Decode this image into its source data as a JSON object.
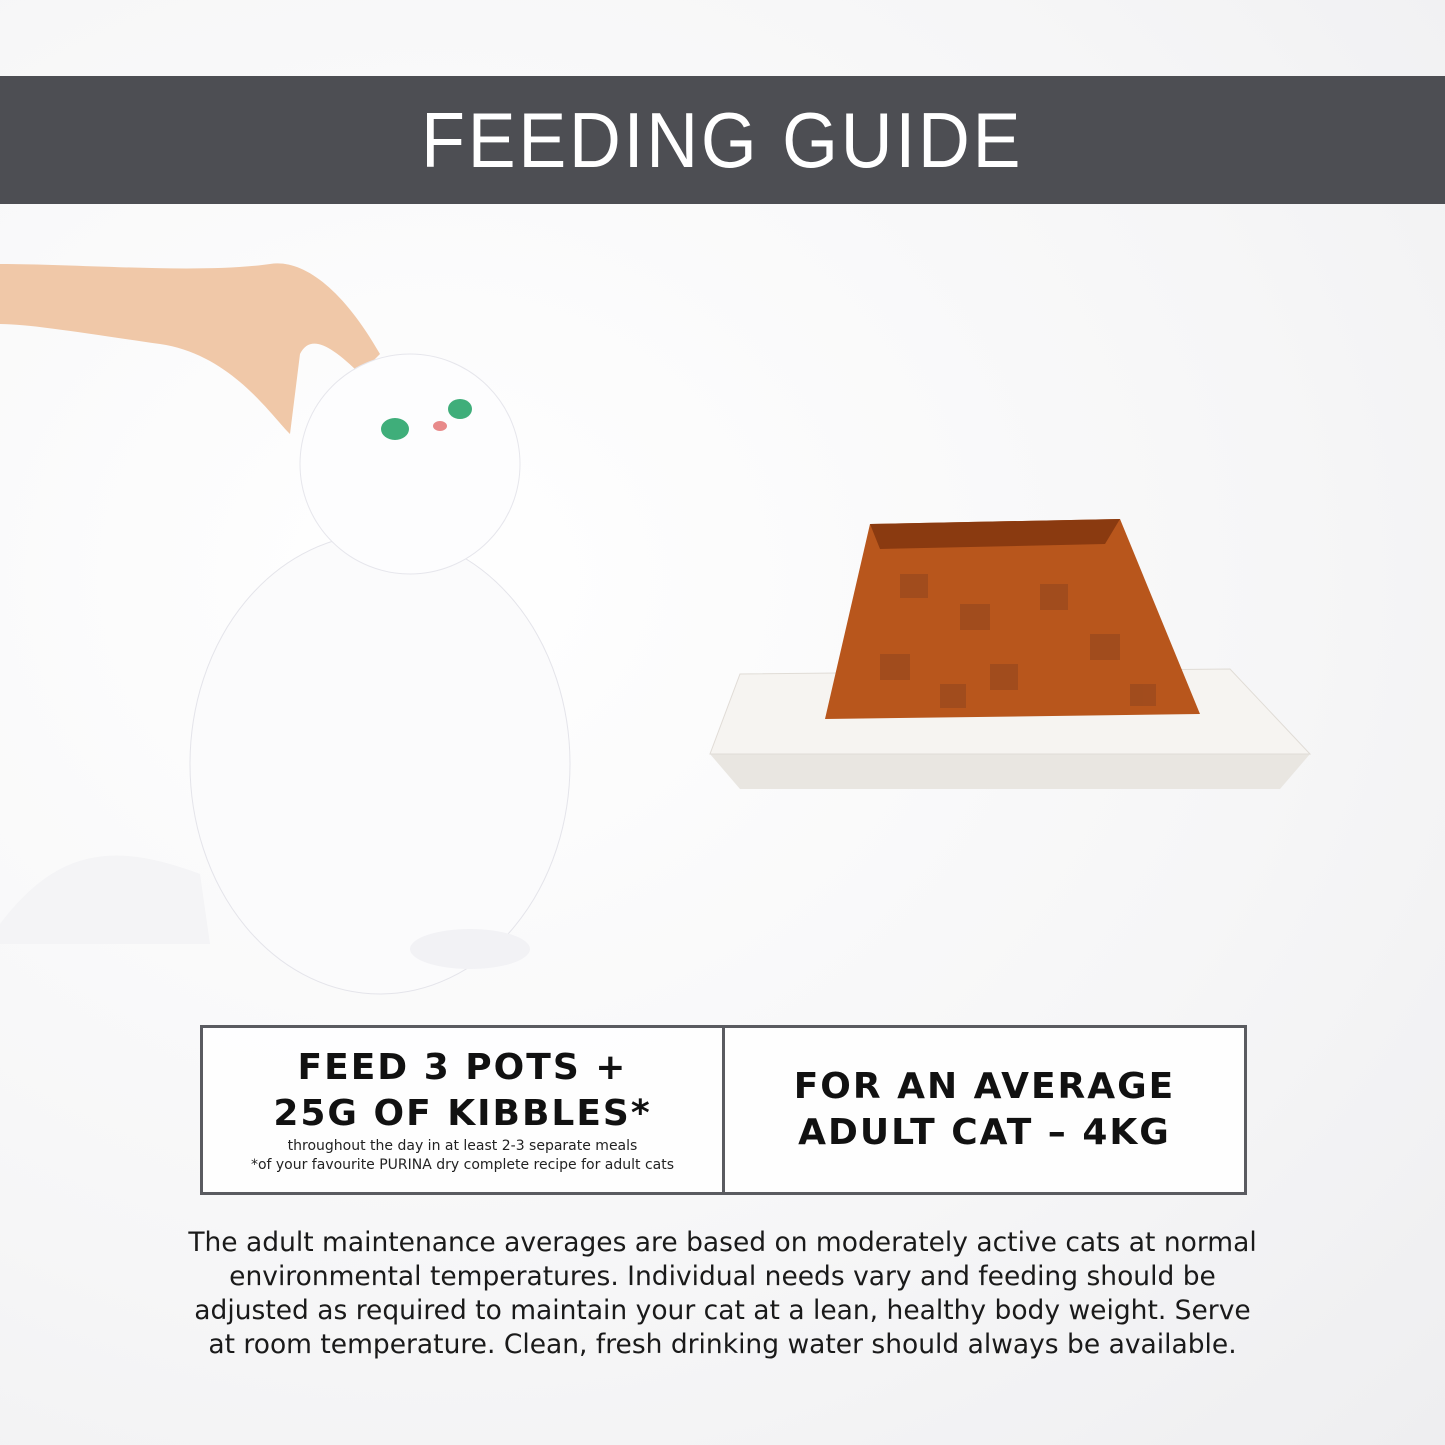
{
  "header": {
    "title": "FEEDING GUIDE",
    "background": "#4d4e53"
  },
  "images": {
    "left": "hand-stroking-white-cat",
    "right": "jelly-pot-food-on-plate"
  },
  "feeding_box": {
    "left": {
      "line1": "FEED 3 POTS +",
      "line2": "25G OF KIBBLES*",
      "note1": "throughout the day in at least 2-3 separate meals",
      "note2": "*of your favourite PURINA dry complete recipe for adult cats"
    },
    "right": {
      "line1": "FOR AN AVERAGE",
      "line2": "ADULT CAT – 4KG"
    }
  },
  "disclaimer": [
    "The adult maintenance averages are based on moderately active cats at normal",
    "environmental temperatures. Individual needs vary and feeding should be",
    "adjusted as required to maintain your cat at a lean, healthy body weight. Serve",
    "at room temperature. Clean, fresh drinking water should always be available."
  ]
}
